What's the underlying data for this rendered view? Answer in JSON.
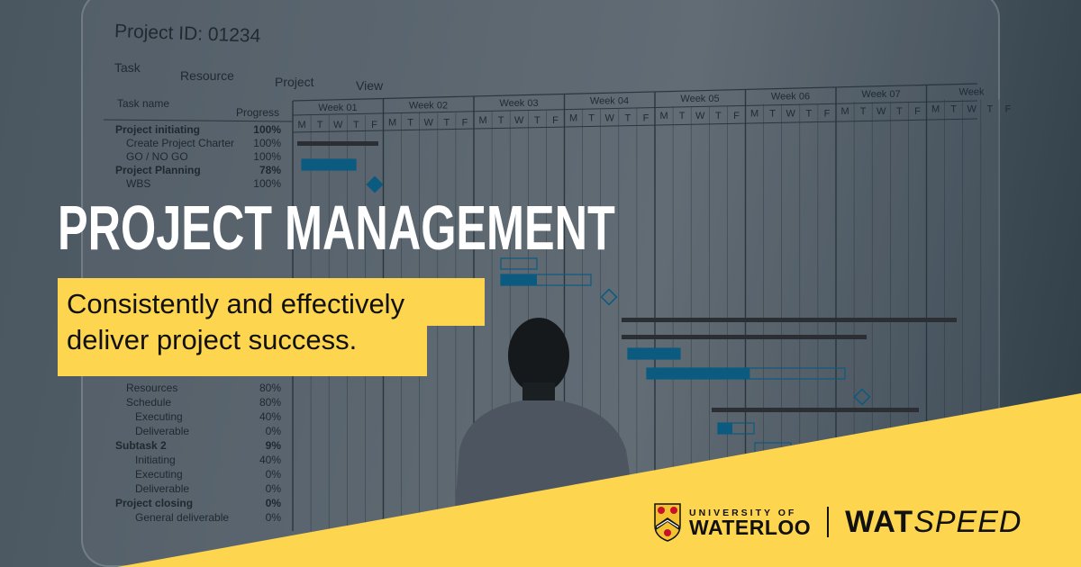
{
  "gantt": {
    "project_id": "Project ID: 01234",
    "menu": [
      "Task",
      "Resource",
      "Project",
      "View"
    ],
    "col_task": "Task name",
    "col_progress": "Progress",
    "weeks": [
      "Week 01",
      "Week 02",
      "Week 03",
      "Week 04",
      "Week 05",
      "Week 06",
      "Week 07",
      "Week"
    ],
    "days": [
      "M",
      "T",
      "W",
      "T",
      "F"
    ],
    "tasks": [
      {
        "name": "Project initiating",
        "progress": "100%",
        "bold": true
      },
      {
        "name": "Create Project Charter",
        "progress": "100%"
      },
      {
        "name": "GO / NO GO",
        "progress": "100%"
      },
      {
        "name": "Project Planning",
        "progress": "78%",
        "bold": true
      },
      {
        "name": "WBS",
        "progress": "100%"
      },
      {
        "name": "Resources",
        "progress": "80%"
      },
      {
        "name": "Schedule",
        "progress": "80%"
      },
      {
        "name": "Executing",
        "progress": "40%"
      },
      {
        "name": "Deliverable",
        "progress": "0%"
      },
      {
        "name": "Subtask 2",
        "progress": "9%",
        "bold": true
      },
      {
        "name": "Initiating",
        "progress": "40%"
      },
      {
        "name": "Executing",
        "progress": "0%"
      },
      {
        "name": "Deliverable",
        "progress": "0%"
      },
      {
        "name": "Project closing",
        "progress": "0%",
        "bold": true
      },
      {
        "name": "General deliverable",
        "progress": "0%"
      }
    ],
    "bar_color": "#0b5a80"
  },
  "headline": "PROJECT MANAGEMENT",
  "subtitle_line1": "Consistently and effectively",
  "subtitle_line2": "deliver project success.",
  "accent": "#fdd54f",
  "logo": {
    "uw_top": "UNIVERSITY OF",
    "uw_bottom": "WATERLOO",
    "wat": "WAT",
    "speed": "SPEED"
  }
}
